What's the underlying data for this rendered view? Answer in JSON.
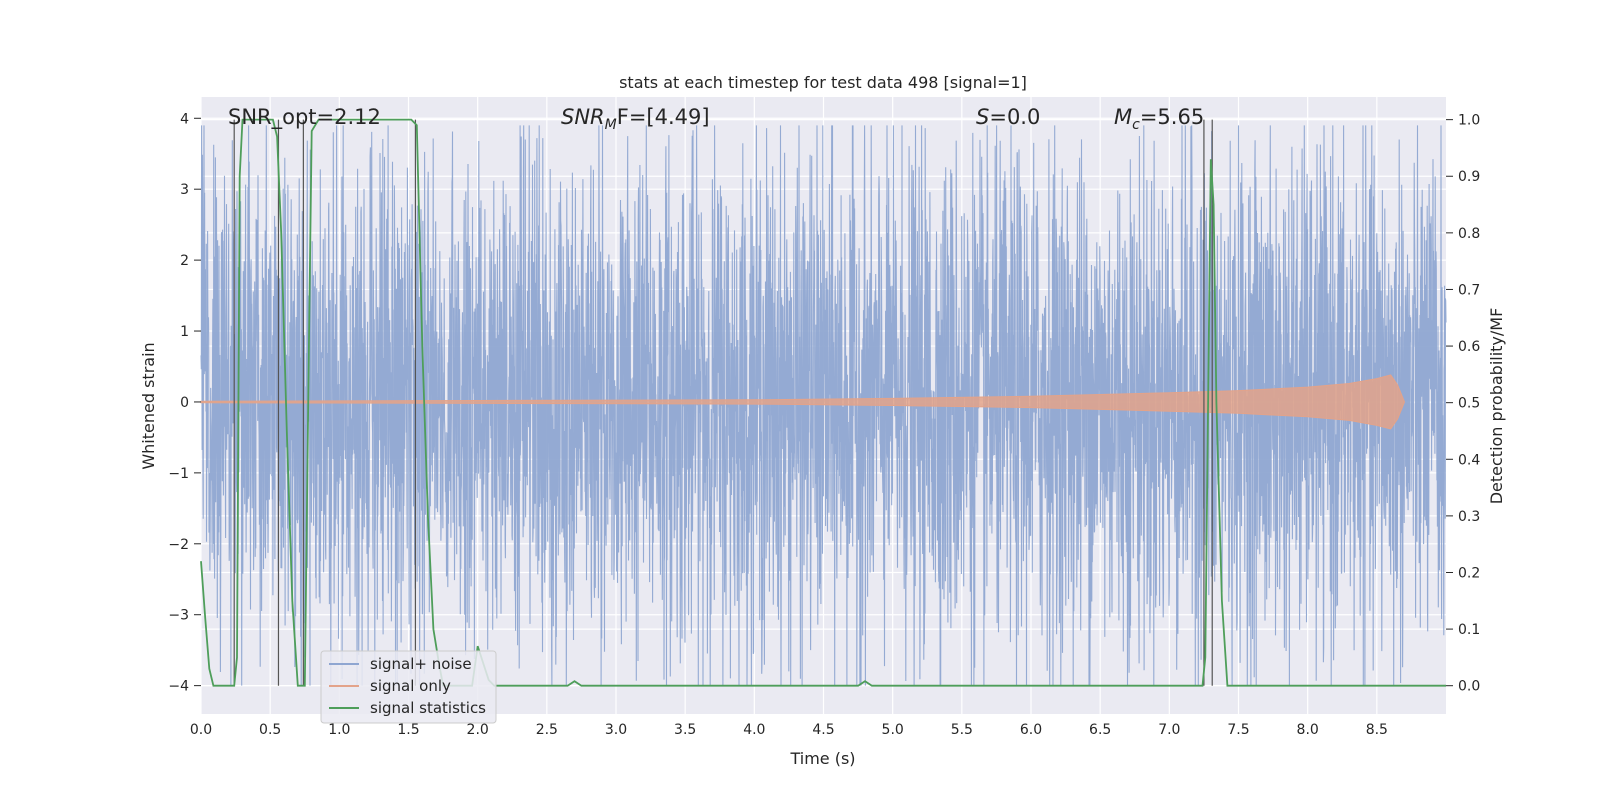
{
  "chart_data": {
    "type": "line",
    "title": "stats at each timestep for test data 498 [signal=1]",
    "xlabel": "Time (s)",
    "ylabel_left": "Whitened strain",
    "ylabel_right": "Detection probability/MF",
    "xlim": [
      0,
      9.0
    ],
    "ylim_left": [
      -4.4,
      4.3
    ],
    "ylim_right": [
      -0.05,
      1.04
    ],
    "grid": true,
    "x_ticks": [
      "0.0",
      "0.5",
      "1.0",
      "1.5",
      "2.0",
      "2.5",
      "3.0",
      "3.5",
      "4.0",
      "4.5",
      "5.0",
      "5.5",
      "6.0",
      "6.5",
      "7.0",
      "7.5",
      "8.0",
      "8.5"
    ],
    "y_left_ticks": [
      "4",
      "3",
      "2",
      "1",
      "0",
      "−1",
      "−2",
      "−3",
      "−4"
    ],
    "y_right_ticks": [
      "1.0",
      "0.9",
      "0.8",
      "0.7",
      "0.6",
      "0.5",
      "0.4",
      "0.3",
      "0.2",
      "0.1",
      "0.0"
    ],
    "annotations": {
      "snr_opt": "SNR_opt=2.12",
      "snr_mf_sym": "SNR",
      "snr_mf_sub": "M",
      "snr_mf_rest": "F=[4.49]",
      "s_sym": "S",
      "s_rest": "=0.0",
      "mc_sym": "M",
      "mc_sub": "c",
      "mc_rest": "=5.65"
    },
    "legend": {
      "position": "lower-left",
      "entries": [
        "signal+ noise",
        "signal only",
        "signal statistics"
      ]
    },
    "series": [
      {
        "name": "signal+ noise",
        "axis": "left",
        "color": "#8fa6d1",
        "description": "whitened strain, roughly gaussian noise with std ~1.7, peaks about ±4",
        "amplitude_range": [
          -4.0,
          3.9
        ]
      },
      {
        "name": "signal only",
        "axis": "left",
        "color": "#e3a38a",
        "description": "chirp signal, amplitude growing until merger",
        "points": [
          [
            0.0,
            0.01
          ],
          [
            2.0,
            0.02
          ],
          [
            4.0,
            0.03
          ],
          [
            5.0,
            0.05
          ],
          [
            6.0,
            0.08
          ],
          [
            7.0,
            0.13
          ],
          [
            7.5,
            0.16
          ],
          [
            8.0,
            0.21
          ],
          [
            8.3,
            0.26
          ],
          [
            8.5,
            0.33
          ],
          [
            8.6,
            0.38
          ],
          [
            8.65,
            0.24
          ],
          [
            8.7,
            0.0
          ]
        ]
      },
      {
        "name": "signal statistics",
        "axis": "right",
        "color": "#4e9e5a",
        "points": [
          [
            0.0,
            0.22
          ],
          [
            0.03,
            0.12
          ],
          [
            0.06,
            0.03
          ],
          [
            0.09,
            0.0
          ],
          [
            0.24,
            0.0
          ],
          [
            0.26,
            0.05
          ],
          [
            0.28,
            0.9
          ],
          [
            0.3,
            1.0
          ],
          [
            0.52,
            1.0
          ],
          [
            0.55,
            0.97
          ],
          [
            0.58,
            0.8
          ],
          [
            0.62,
            0.45
          ],
          [
            0.66,
            0.15
          ],
          [
            0.7,
            0.0
          ],
          [
            0.75,
            0.0
          ],
          [
            0.78,
            0.6
          ],
          [
            0.8,
            0.98
          ],
          [
            0.85,
            1.0
          ],
          [
            1.52,
            1.0
          ],
          [
            1.56,
            0.99
          ],
          [
            1.6,
            0.6
          ],
          [
            1.64,
            0.3
          ],
          [
            1.68,
            0.1
          ],
          [
            1.72,
            0.04
          ],
          [
            1.75,
            0.0
          ],
          [
            1.96,
            0.0
          ],
          [
            2.0,
            0.07
          ],
          [
            2.04,
            0.04
          ],
          [
            2.08,
            0.01
          ],
          [
            2.12,
            0.0
          ],
          [
            2.65,
            0.0
          ],
          [
            2.7,
            0.008
          ],
          [
            2.75,
            0.0
          ],
          [
            4.75,
            0.0
          ],
          [
            4.8,
            0.008
          ],
          [
            4.85,
            0.0
          ],
          [
            7.24,
            0.0
          ],
          [
            7.26,
            0.05
          ],
          [
            7.28,
            0.5
          ],
          [
            7.3,
            0.93
          ],
          [
            7.32,
            0.85
          ],
          [
            7.34,
            0.5
          ],
          [
            7.38,
            0.15
          ],
          [
            7.42,
            0.0
          ],
          [
            9.0,
            0.0
          ]
        ]
      }
    ],
    "vertical_markers_s": [
      0.24,
      0.56,
      0.74,
      1.55,
      7.25,
      7.31
    ]
  }
}
